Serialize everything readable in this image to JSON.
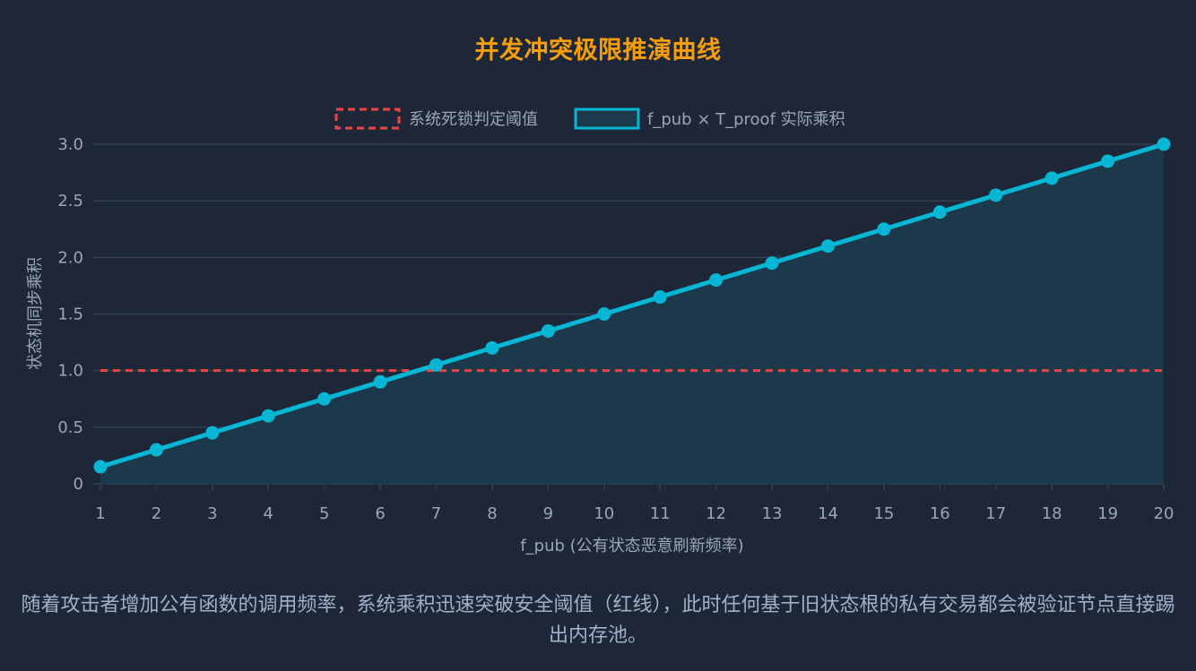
{
  "chart_data": {
    "type": "line",
    "title": "并发冲突极限推演曲线",
    "xlabel": "f_pub (公有状态恶意刷新频率)",
    "ylabel": "状态机同步乘积",
    "categories": [
      "1",
      "2",
      "3",
      "4",
      "5",
      "6",
      "7",
      "8",
      "9",
      "10",
      "11",
      "12",
      "13",
      "14",
      "15",
      "16",
      "17",
      "18",
      "19",
      "20"
    ],
    "ylim": [
      0,
      3.0
    ],
    "yticks": [
      {
        "value": 0,
        "label": "0"
      },
      {
        "value": 0.5,
        "label": "0.5"
      },
      {
        "value": 1.0,
        "label": "1.0"
      },
      {
        "value": 1.5,
        "label": "1.5"
      },
      {
        "value": 2.0,
        "label": "2.0"
      },
      {
        "value": 2.5,
        "label": "2.5"
      },
      {
        "value": 3.0,
        "label": "3.0"
      }
    ],
    "grid": true,
    "legend_position": "top-center",
    "series": [
      {
        "name": "系统死锁判定阈值",
        "style": "dashed",
        "color": "#ef4444",
        "values": [
          1,
          1,
          1,
          1,
          1,
          1,
          1,
          1,
          1,
          1,
          1,
          1,
          1,
          1,
          1,
          1,
          1,
          1,
          1,
          1
        ]
      },
      {
        "name": "f_pub × T_proof 实际乘积",
        "style": "area",
        "color": "#06b6d4",
        "fill": "#1c3a4c",
        "values": [
          0.15,
          0.3,
          0.45,
          0.6,
          0.75,
          0.9,
          1.05,
          1.2,
          1.35,
          1.5,
          1.65,
          1.8,
          1.95,
          2.1,
          2.25,
          2.4,
          2.55,
          2.7,
          2.85,
          3.0
        ]
      }
    ]
  },
  "caption": "随着攻击者增加公有函数的调用频率，系统乘积迅速突破安全阈值（红线），此时任何基于旧状态根的私有交易都会被验证节点直接踢出内存池。",
  "colors": {
    "background": "#1e2738",
    "title": "#f59e0b",
    "grid": "#334155",
    "text": "#9aa6b8"
  }
}
